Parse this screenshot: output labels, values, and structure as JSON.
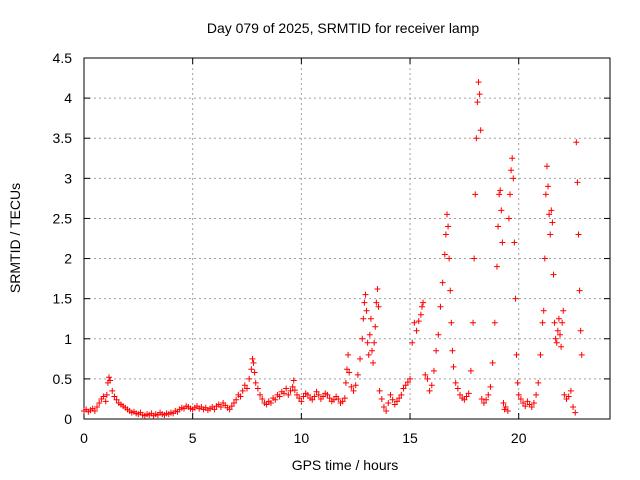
{
  "chart_data": {
    "type": "scatter",
    "title": "Day 079 of 2025, SRMTID for receiver lamp",
    "xlabel": "GPS time / hours",
    "ylabel": "SRMTID / TECUs",
    "xlim": [
      0,
      24.2
    ],
    "ylim": [
      0,
      4.5
    ],
    "xticks": [
      0,
      5,
      10,
      15,
      20
    ],
    "xtick_labels": [
      "0",
      "5",
      "10",
      "15",
      "20"
    ],
    "yticks": [
      0,
      0.5,
      1,
      1.5,
      2,
      2.5,
      3,
      3.5,
      4,
      4.5
    ],
    "ytick_labels": [
      "0",
      "0.5",
      "1",
      "1.5",
      "2",
      "2.5",
      "3",
      "3.5",
      "4",
      "4.5"
    ],
    "grid": true,
    "marker": "plus",
    "colors": {
      "points": "#ff0000",
      "grid": "#a0a0a0",
      "axis": "#000000"
    },
    "series": [
      {
        "name": "SRMTID",
        "points": [
          [
            0.0,
            0.1
          ],
          [
            0.1,
            0.12
          ],
          [
            0.2,
            0.09
          ],
          [
            0.3,
            0.11
          ],
          [
            0.4,
            0.13
          ],
          [
            0.5,
            0.1
          ],
          [
            0.6,
            0.15
          ],
          [
            0.7,
            0.2
          ],
          [
            0.8,
            0.25
          ],
          [
            0.9,
            0.28
          ],
          [
            1.0,
            0.22
          ],
          [
            1.05,
            0.3
          ],
          [
            1.1,
            0.45
          ],
          [
            1.15,
            0.52
          ],
          [
            1.2,
            0.48
          ],
          [
            1.3,
            0.35
          ],
          [
            1.4,
            0.28
          ],
          [
            1.5,
            0.24
          ],
          [
            1.6,
            0.2
          ],
          [
            1.7,
            0.18
          ],
          [
            1.8,
            0.16
          ],
          [
            1.9,
            0.14
          ],
          [
            2.0,
            0.12
          ],
          [
            2.1,
            0.1
          ],
          [
            2.2,
            0.08
          ],
          [
            2.3,
            0.09
          ],
          [
            2.4,
            0.07
          ],
          [
            2.5,
            0.06
          ],
          [
            2.6,
            0.08
          ],
          [
            2.7,
            0.05
          ],
          [
            2.8,
            0.04
          ],
          [
            2.9,
            0.06
          ],
          [
            3.0,
            0.05
          ],
          [
            3.1,
            0.07
          ],
          [
            3.2,
            0.04
          ],
          [
            3.3,
            0.06
          ],
          [
            3.4,
            0.05
          ],
          [
            3.5,
            0.08
          ],
          [
            3.6,
            0.06
          ],
          [
            3.7,
            0.05
          ],
          [
            3.8,
            0.07
          ],
          [
            3.9,
            0.06
          ],
          [
            4.0,
            0.08
          ],
          [
            4.1,
            0.07
          ],
          [
            4.2,
            0.1
          ],
          [
            4.3,
            0.09
          ],
          [
            4.4,
            0.12
          ],
          [
            4.5,
            0.14
          ],
          [
            4.6,
            0.13
          ],
          [
            4.7,
            0.16
          ],
          [
            4.8,
            0.15
          ],
          [
            4.9,
            0.13
          ],
          [
            5.0,
            0.12
          ],
          [
            5.1,
            0.14
          ],
          [
            5.2,
            0.16
          ],
          [
            5.3,
            0.13
          ],
          [
            5.4,
            0.15
          ],
          [
            5.5,
            0.12
          ],
          [
            5.6,
            0.14
          ],
          [
            5.7,
            0.11
          ],
          [
            5.8,
            0.13
          ],
          [
            5.9,
            0.15
          ],
          [
            6.0,
            0.12
          ],
          [
            6.1,
            0.16
          ],
          [
            6.2,
            0.18
          ],
          [
            6.3,
            0.15
          ],
          [
            6.4,
            0.2
          ],
          [
            6.5,
            0.17
          ],
          [
            6.6,
            0.14
          ],
          [
            6.7,
            0.12
          ],
          [
            6.8,
            0.16
          ],
          [
            6.9,
            0.2
          ],
          [
            7.0,
            0.24
          ],
          [
            7.1,
            0.3
          ],
          [
            7.2,
            0.28
          ],
          [
            7.3,
            0.35
          ],
          [
            7.4,
            0.42
          ],
          [
            7.5,
            0.38
          ],
          [
            7.6,
            0.5
          ],
          [
            7.7,
            0.62
          ],
          [
            7.75,
            0.75
          ],
          [
            7.8,
            0.7
          ],
          [
            7.85,
            0.58
          ],
          [
            7.9,
            0.45
          ],
          [
            8.0,
            0.38
          ],
          [
            8.1,
            0.3
          ],
          [
            8.2,
            0.25
          ],
          [
            8.3,
            0.2
          ],
          [
            8.4,
            0.18
          ],
          [
            8.5,
            0.22
          ],
          [
            8.6,
            0.2
          ],
          [
            8.7,
            0.26
          ],
          [
            8.8,
            0.24
          ],
          [
            8.9,
            0.3
          ],
          [
            9.0,
            0.28
          ],
          [
            9.1,
            0.34
          ],
          [
            9.2,
            0.32
          ],
          [
            9.3,
            0.38
          ],
          [
            9.4,
            0.3
          ],
          [
            9.5,
            0.35
          ],
          [
            9.6,
            0.4
          ],
          [
            9.65,
            0.48
          ],
          [
            9.7,
            0.36
          ],
          [
            9.8,
            0.3
          ],
          [
            9.9,
            0.26
          ],
          [
            10.0,
            0.22
          ],
          [
            10.1,
            0.28
          ],
          [
            10.2,
            0.32
          ],
          [
            10.3,
            0.3
          ],
          [
            10.4,
            0.26
          ],
          [
            10.5,
            0.24
          ],
          [
            10.6,
            0.28
          ],
          [
            10.7,
            0.34
          ],
          [
            10.8,
            0.3
          ],
          [
            10.9,
            0.25
          ],
          [
            11.0,
            0.28
          ],
          [
            11.1,
            0.32
          ],
          [
            11.2,
            0.3
          ],
          [
            11.3,
            0.26
          ],
          [
            11.4,
            0.22
          ],
          [
            11.5,
            0.24
          ],
          [
            11.6,
            0.28
          ],
          [
            11.7,
            0.25
          ],
          [
            11.8,
            0.2
          ],
          [
            11.9,
            0.22
          ],
          [
            12.0,
            0.26
          ],
          [
            12.05,
            0.45
          ],
          [
            12.1,
            0.62
          ],
          [
            12.15,
            0.8
          ],
          [
            12.2,
            0.58
          ],
          [
            12.3,
            0.4
          ],
          [
            12.4,
            0.35
          ],
          [
            12.5,
            0.42
          ],
          [
            12.6,
            0.55
          ],
          [
            12.7,
            0.75
          ],
          [
            12.8,
            1.0
          ],
          [
            12.85,
            1.25
          ],
          [
            12.9,
            1.45
          ],
          [
            12.95,
            1.55
          ],
          [
            13.0,
            1.35
          ],
          [
            13.05,
            0.95
          ],
          [
            13.1,
            0.8
          ],
          [
            13.15,
            1.05
          ],
          [
            13.2,
            1.25
          ],
          [
            13.25,
            0.85
          ],
          [
            13.3,
            0.7
          ],
          [
            13.35,
            0.95
          ],
          [
            13.4,
            1.15
          ],
          [
            13.45,
            1.45
          ],
          [
            13.5,
            1.62
          ],
          [
            13.55,
            1.4
          ],
          [
            13.6,
            0.35
          ],
          [
            13.7,
            0.25
          ],
          [
            13.8,
            0.15
          ],
          [
            13.9,
            0.1
          ],
          [
            14.0,
            0.2
          ],
          [
            14.1,
            0.3
          ],
          [
            14.2,
            0.24
          ],
          [
            14.3,
            0.18
          ],
          [
            14.4,
            0.22
          ],
          [
            14.5,
            0.26
          ],
          [
            14.6,
            0.3
          ],
          [
            14.7,
            0.38
          ],
          [
            14.8,
            0.42
          ],
          [
            14.9,
            0.46
          ],
          [
            15.0,
            0.5
          ],
          [
            15.1,
            0.95
          ],
          [
            15.2,
            1.2
          ],
          [
            15.3,
            1.1
          ],
          [
            15.4,
            1.22
          ],
          [
            15.5,
            1.3
          ],
          [
            15.55,
            1.4
          ],
          [
            15.6,
            1.45
          ],
          [
            15.7,
            0.55
          ],
          [
            15.8,
            0.5
          ],
          [
            15.9,
            0.35
          ],
          [
            16.0,
            0.42
          ],
          [
            16.1,
            0.6
          ],
          [
            16.2,
            0.85
          ],
          [
            16.3,
            1.05
          ],
          [
            16.4,
            1.4
          ],
          [
            16.5,
            1.7
          ],
          [
            16.6,
            2.05
          ],
          [
            16.65,
            2.3
          ],
          [
            16.7,
            2.55
          ],
          [
            16.75,
            2.4
          ],
          [
            16.8,
            2.0
          ],
          [
            16.85,
            1.6
          ],
          [
            16.9,
            1.2
          ],
          [
            16.95,
            0.85
          ],
          [
            17.0,
            0.65
          ],
          [
            17.1,
            0.45
          ],
          [
            17.2,
            0.38
          ],
          [
            17.3,
            0.3
          ],
          [
            17.4,
            0.26
          ],
          [
            17.5,
            0.24
          ],
          [
            17.6,
            0.28
          ],
          [
            17.7,
            0.32
          ],
          [
            17.8,
            0.6
          ],
          [
            17.9,
            1.2
          ],
          [
            17.95,
            2.0
          ],
          [
            18.0,
            2.8
          ],
          [
            18.05,
            3.5
          ],
          [
            18.1,
            3.95
          ],
          [
            18.15,
            4.2
          ],
          [
            18.2,
            4.05
          ],
          [
            18.25,
            3.6
          ],
          [
            18.3,
            0.25
          ],
          [
            18.4,
            0.2
          ],
          [
            18.5,
            0.24
          ],
          [
            18.6,
            0.3
          ],
          [
            18.7,
            0.4
          ],
          [
            18.8,
            0.7
          ],
          [
            18.9,
            1.2
          ],
          [
            19.0,
            1.9
          ],
          [
            19.05,
            2.4
          ],
          [
            19.1,
            2.8
          ],
          [
            19.15,
            2.85
          ],
          [
            19.2,
            2.6
          ],
          [
            19.25,
            2.2
          ],
          [
            19.3,
            0.2
          ],
          [
            19.35,
            0.12
          ],
          [
            19.4,
            0.15
          ],
          [
            19.5,
            0.1
          ],
          [
            19.55,
            2.5
          ],
          [
            19.6,
            2.8
          ],
          [
            19.65,
            3.1
          ],
          [
            19.7,
            3.25
          ],
          [
            19.75,
            3.0
          ],
          [
            19.8,
            2.2
          ],
          [
            19.85,
            1.5
          ],
          [
            19.9,
            0.8
          ],
          [
            19.95,
            0.45
          ],
          [
            20.0,
            0.3
          ],
          [
            20.1,
            0.25
          ],
          [
            20.2,
            0.2
          ],
          [
            20.3,
            0.16
          ],
          [
            20.4,
            0.22
          ],
          [
            20.5,
            0.18
          ],
          [
            20.6,
            0.15
          ],
          [
            20.7,
            0.2
          ],
          [
            20.8,
            0.3
          ],
          [
            20.9,
            0.45
          ],
          [
            21.0,
            0.8
          ],
          [
            21.1,
            1.2
          ],
          [
            21.15,
            1.35
          ],
          [
            21.2,
            2.0
          ],
          [
            21.25,
            2.8
          ],
          [
            21.3,
            3.15
          ],
          [
            21.35,
            2.9
          ],
          [
            21.4,
            2.55
          ],
          [
            21.45,
            2.3
          ],
          [
            21.5,
            2.6
          ],
          [
            21.55,
            2.45
          ],
          [
            21.6,
            1.8
          ],
          [
            21.65,
            1.2
          ],
          [
            21.7,
            1.0
          ],
          [
            21.75,
            0.95
          ],
          [
            21.8,
            1.1
          ],
          [
            21.85,
            1.25
          ],
          [
            21.9,
            1.05
          ],
          [
            21.95,
            0.9
          ],
          [
            22.0,
            1.2
          ],
          [
            22.05,
            1.35
          ],
          [
            22.1,
            0.3
          ],
          [
            22.2,
            0.25
          ],
          [
            22.3,
            0.28
          ],
          [
            22.4,
            0.35
          ],
          [
            22.5,
            0.15
          ],
          [
            22.6,
            0.08
          ],
          [
            22.65,
            3.45
          ],
          [
            22.7,
            2.95
          ],
          [
            22.75,
            2.3
          ],
          [
            22.8,
            1.6
          ],
          [
            22.85,
            1.1
          ],
          [
            22.9,
            0.8
          ]
        ]
      }
    ]
  }
}
